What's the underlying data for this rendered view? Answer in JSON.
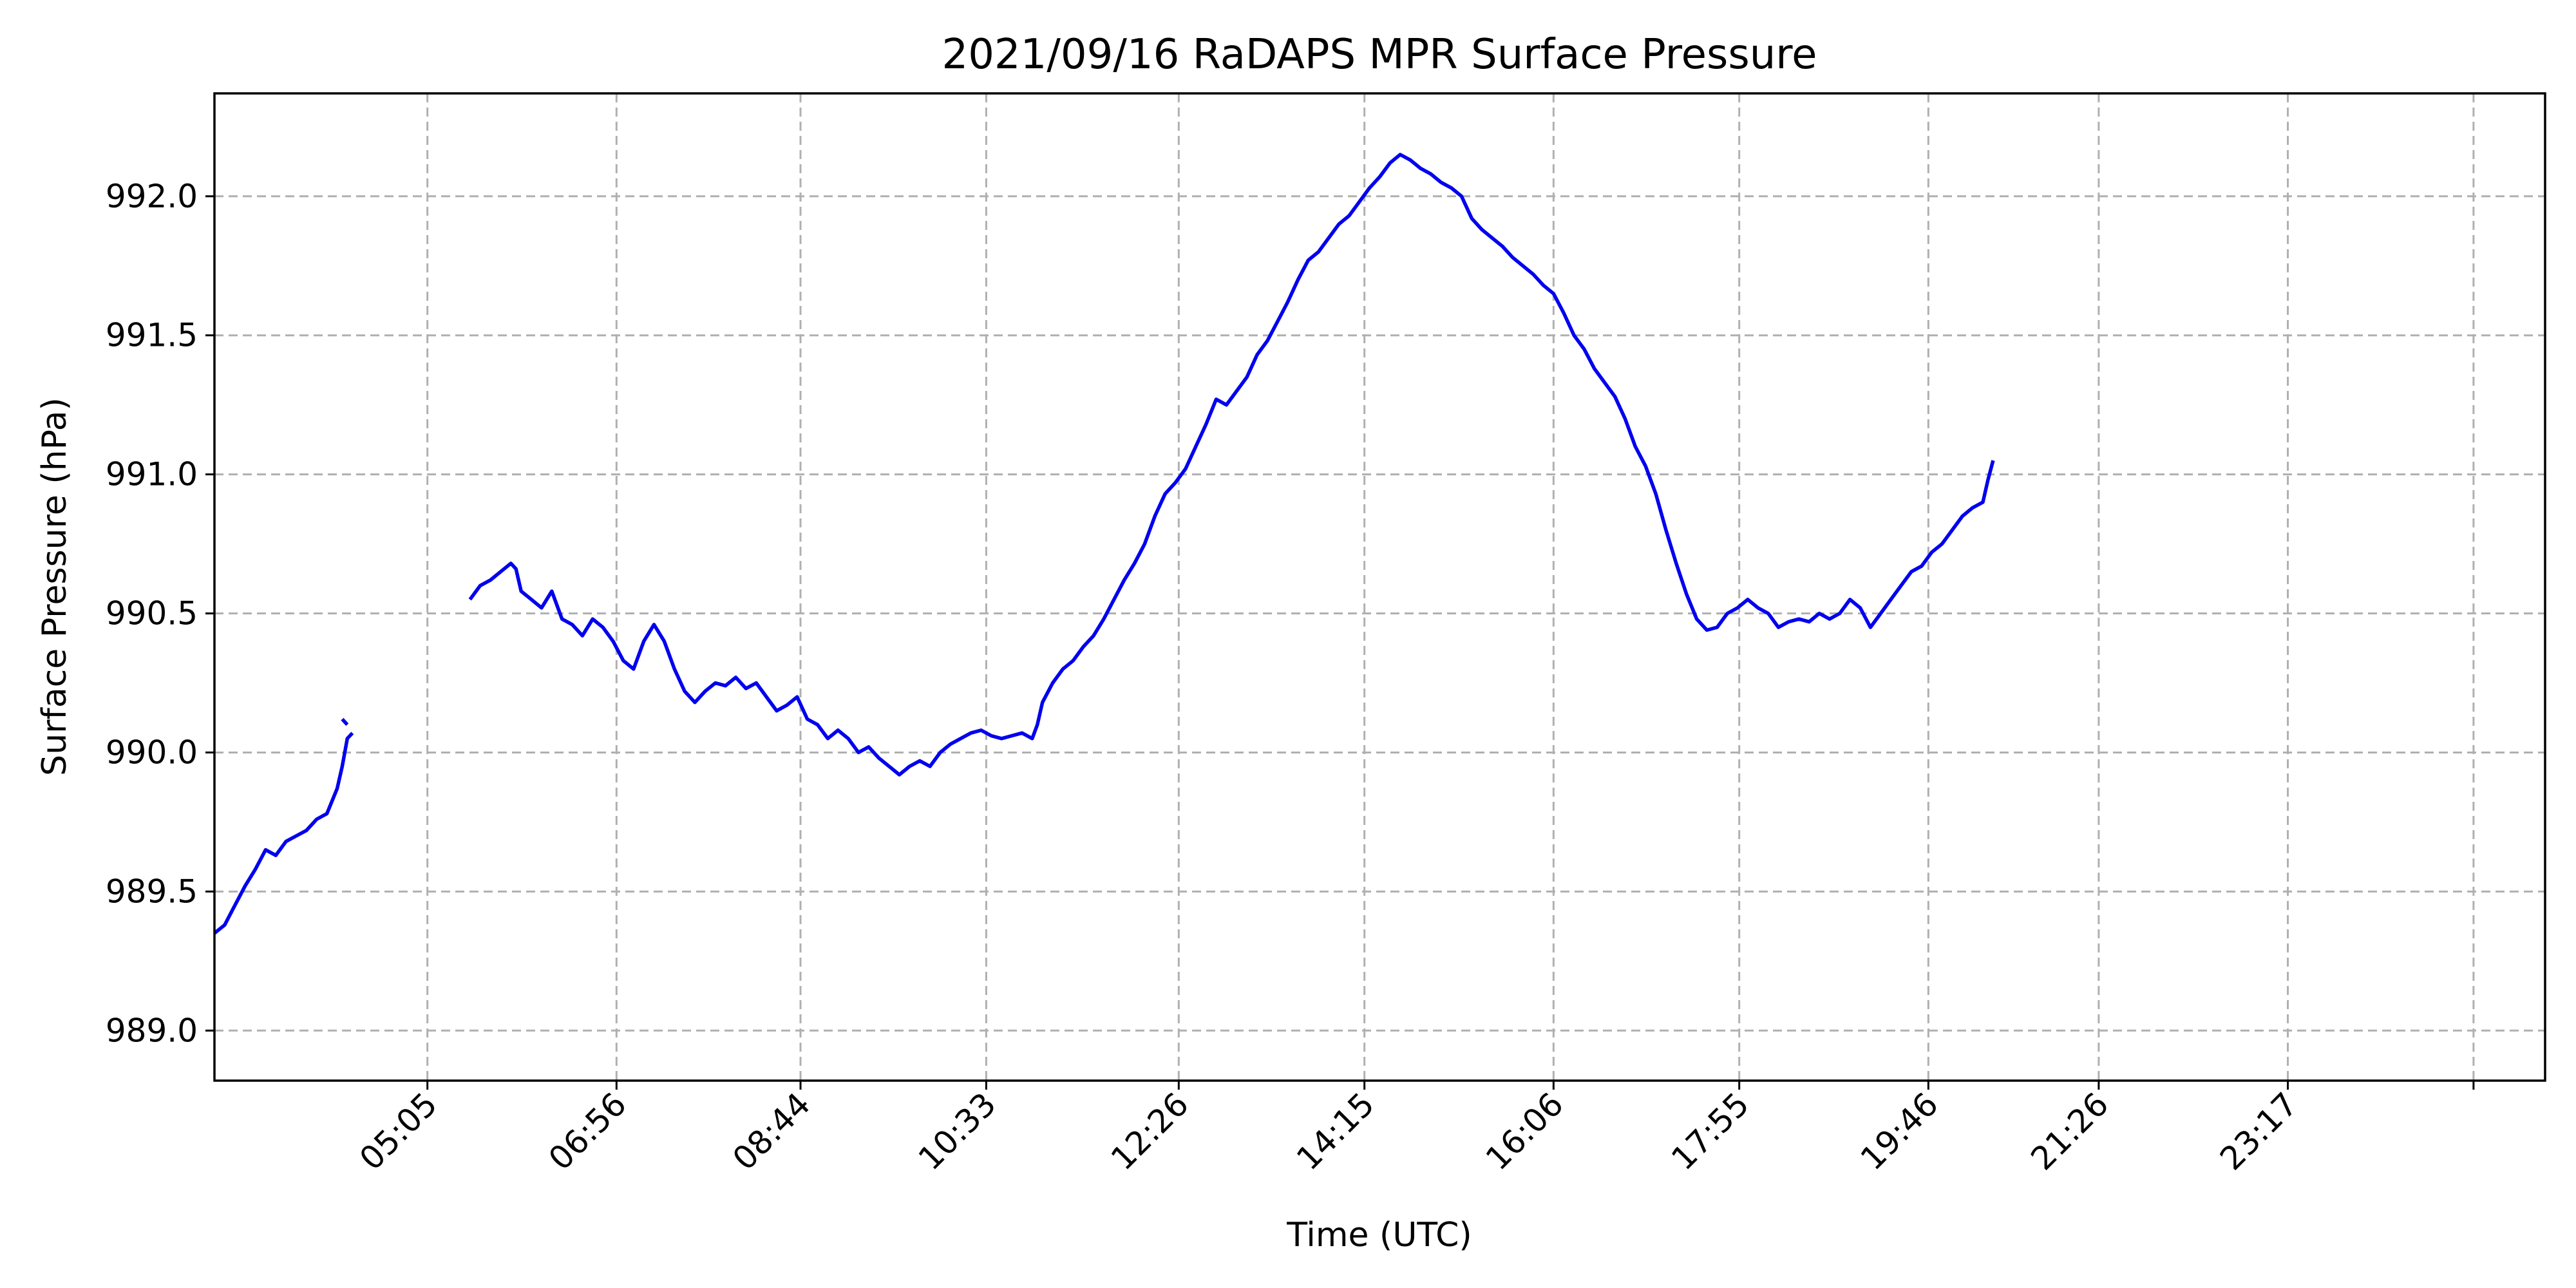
{
  "chart_data": {
    "type": "line",
    "title": "2021/09/16 RaDAPS MPR Surface Pressure",
    "xlabel": "Time (UTC)",
    "ylabel": "Surface Pressure (hPa)",
    "x_unit": "hours UTC",
    "xlim": [
      3.0,
      25.8
    ],
    "ylim": [
      988.82,
      992.37
    ],
    "grid": true,
    "x_ticks": [
      {
        "x": 5.0833,
        "label": "05:05"
      },
      {
        "x": 6.9333,
        "label": "06:56"
      },
      {
        "x": 8.7333,
        "label": "08:44"
      },
      {
        "x": 10.55,
        "label": "10:33"
      },
      {
        "x": 12.4333,
        "label": "12:26"
      },
      {
        "x": 14.25,
        "label": "14:15"
      },
      {
        "x": 16.1,
        "label": "16:06"
      },
      {
        "x": 17.9167,
        "label": "17:55"
      },
      {
        "x": 19.7667,
        "label": "19:46"
      },
      {
        "x": 21.4333,
        "label": "21:26"
      },
      {
        "x": 23.2833,
        "label": "23:17"
      },
      {
        "x": 25.1,
        "label": ""
      }
    ],
    "y_ticks": [
      {
        "y": 989.0,
        "label": "989.0"
      },
      {
        "y": 989.5,
        "label": "989.5"
      },
      {
        "y": 990.0,
        "label": "990.0"
      },
      {
        "y": 990.5,
        "label": "990.5"
      },
      {
        "y": 991.0,
        "label": "991.0"
      },
      {
        "y": 991.5,
        "label": "991.5"
      },
      {
        "y": 992.0,
        "label": "992.0"
      }
    ],
    "series": [
      {
        "color": "#0000ee",
        "segments": [
          [
            [
              3.0,
              989.35
            ],
            [
              3.1,
              989.38
            ],
            [
              3.2,
              989.45
            ],
            [
              3.3,
              989.52
            ],
            [
              3.4,
              989.58
            ],
            [
              3.5,
              989.65
            ],
            [
              3.6,
              989.63
            ],
            [
              3.7,
              989.68
            ],
            [
              3.8,
              989.7
            ],
            [
              3.9,
              989.72
            ],
            [
              4.0,
              989.76
            ],
            [
              4.1,
              989.78
            ],
            [
              4.2,
              989.87
            ],
            [
              4.25,
              989.95
            ],
            [
              4.3,
              990.05
            ],
            [
              4.35,
              990.07
            ]
          ],
          [
            [
              4.25,
              990.12
            ],
            [
              4.3,
              990.1
            ]
          ],
          [
            [
              5.5,
              990.55
            ],
            [
              5.6,
              990.6
            ],
            [
              5.7,
              990.62
            ],
            [
              5.8,
              990.65
            ],
            [
              5.9,
              990.68
            ],
            [
              5.95,
              990.66
            ],
            [
              6.0,
              990.58
            ],
            [
              6.1,
              990.55
            ],
            [
              6.2,
              990.52
            ],
            [
              6.3,
              990.58
            ],
            [
              6.4,
              990.48
            ],
            [
              6.5,
              990.46
            ],
            [
              6.6,
              990.42
            ],
            [
              6.7,
              990.48
            ],
            [
              6.8,
              990.45
            ],
            [
              6.9,
              990.4
            ],
            [
              7.0,
              990.33
            ],
            [
              7.1,
              990.3
            ],
            [
              7.2,
              990.4
            ],
            [
              7.3,
              990.46
            ],
            [
              7.4,
              990.4
            ],
            [
              7.5,
              990.3
            ],
            [
              7.6,
              990.22
            ],
            [
              7.7,
              990.18
            ],
            [
              7.8,
              990.22
            ],
            [
              7.9,
              990.25
            ],
            [
              8.0,
              990.24
            ],
            [
              8.1,
              990.27
            ],
            [
              8.2,
              990.23
            ],
            [
              8.3,
              990.25
            ],
            [
              8.4,
              990.2
            ],
            [
              8.5,
              990.15
            ],
            [
              8.6,
              990.17
            ],
            [
              8.7,
              990.2
            ],
            [
              8.8,
              990.12
            ],
            [
              8.9,
              990.1
            ],
            [
              9.0,
              990.05
            ],
            [
              9.1,
              990.08
            ],
            [
              9.2,
              990.05
            ],
            [
              9.3,
              990.0
            ],
            [
              9.4,
              990.02
            ],
            [
              9.5,
              989.98
            ],
            [
              9.6,
              989.95
            ],
            [
              9.7,
              989.92
            ],
            [
              9.8,
              989.95
            ],
            [
              9.9,
              989.97
            ],
            [
              10.0,
              989.95
            ],
            [
              10.1,
              990.0
            ],
            [
              10.2,
              990.03
            ],
            [
              10.3,
              990.05
            ],
            [
              10.4,
              990.07
            ],
            [
              10.5,
              990.08
            ],
            [
              10.6,
              990.06
            ],
            [
              10.7,
              990.05
            ],
            [
              10.8,
              990.06
            ],
            [
              10.9,
              990.07
            ],
            [
              11.0,
              990.05
            ],
            [
              11.05,
              990.1
            ],
            [
              11.1,
              990.18
            ],
            [
              11.2,
              990.25
            ],
            [
              11.3,
              990.3
            ],
            [
              11.4,
              990.33
            ],
            [
              11.5,
              990.38
            ],
            [
              11.6,
              990.42
            ],
            [
              11.7,
              990.48
            ],
            [
              11.8,
              990.55
            ],
            [
              11.9,
              990.62
            ],
            [
              12.0,
              990.68
            ],
            [
              12.1,
              990.75
            ],
            [
              12.2,
              990.85
            ],
            [
              12.3,
              990.93
            ],
            [
              12.4,
              990.97
            ],
            [
              12.5,
              991.02
            ],
            [
              12.6,
              991.1
            ],
            [
              12.7,
              991.18
            ],
            [
              12.8,
              991.27
            ],
            [
              12.9,
              991.25
            ],
            [
              13.0,
              991.3
            ],
            [
              13.1,
              991.35
            ],
            [
              13.2,
              991.43
            ],
            [
              13.3,
              991.48
            ],
            [
              13.4,
              991.55
            ],
            [
              13.5,
              991.62
            ],
            [
              13.6,
              991.7
            ],
            [
              13.7,
              991.77
            ],
            [
              13.8,
              991.8
            ],
            [
              13.9,
              991.85
            ],
            [
              14.0,
              991.9
            ],
            [
              14.1,
              991.93
            ],
            [
              14.2,
              991.98
            ],
            [
              14.3,
              992.03
            ],
            [
              14.4,
              992.07
            ],
            [
              14.5,
              992.12
            ],
            [
              14.6,
              992.15
            ],
            [
              14.7,
              992.13
            ],
            [
              14.8,
              992.1
            ],
            [
              14.9,
              992.08
            ],
            [
              15.0,
              992.05
            ],
            [
              15.1,
              992.03
            ],
            [
              15.2,
              992.0
            ],
            [
              15.3,
              991.92
            ],
            [
              15.4,
              991.88
            ],
            [
              15.5,
              991.85
            ],
            [
              15.6,
              991.82
            ],
            [
              15.7,
              991.78
            ],
            [
              15.8,
              991.75
            ],
            [
              15.9,
              991.72
            ],
            [
              16.0,
              991.68
            ],
            [
              16.1,
              991.65
            ],
            [
              16.2,
              991.58
            ],
            [
              16.3,
              991.5
            ],
            [
              16.4,
              991.45
            ],
            [
              16.5,
              991.38
            ],
            [
              16.6,
              991.33
            ],
            [
              16.7,
              991.28
            ],
            [
              16.8,
              991.2
            ],
            [
              16.9,
              991.1
            ],
            [
              17.0,
              991.03
            ],
            [
              17.1,
              990.93
            ],
            [
              17.2,
              990.8
            ],
            [
              17.3,
              990.68
            ],
            [
              17.4,
              990.57
            ],
            [
              17.5,
              990.48
            ],
            [
              17.6,
              990.44
            ],
            [
              17.7,
              990.45
            ],
            [
              17.8,
              990.5
            ],
            [
              17.9,
              990.52
            ],
            [
              18.0,
              990.55
            ],
            [
              18.1,
              990.52
            ],
            [
              18.2,
              990.5
            ],
            [
              18.3,
              990.45
            ],
            [
              18.4,
              990.47
            ],
            [
              18.5,
              990.48
            ],
            [
              18.6,
              990.47
            ],
            [
              18.7,
              990.5
            ],
            [
              18.8,
              990.48
            ],
            [
              18.9,
              990.5
            ],
            [
              19.0,
              990.55
            ],
            [
              19.1,
              990.52
            ],
            [
              19.2,
              990.45
            ],
            [
              19.3,
              990.5
            ],
            [
              19.4,
              990.55
            ],
            [
              19.5,
              990.6
            ],
            [
              19.6,
              990.65
            ],
            [
              19.7,
              990.67
            ],
            [
              19.8,
              990.72
            ],
            [
              19.9,
              990.75
            ],
            [
              20.0,
              990.8
            ],
            [
              20.1,
              990.85
            ],
            [
              20.2,
              990.88
            ],
            [
              20.3,
              990.9
            ],
            [
              20.35,
              990.98
            ],
            [
              20.4,
              991.05
            ]
          ]
        ]
      }
    ]
  }
}
